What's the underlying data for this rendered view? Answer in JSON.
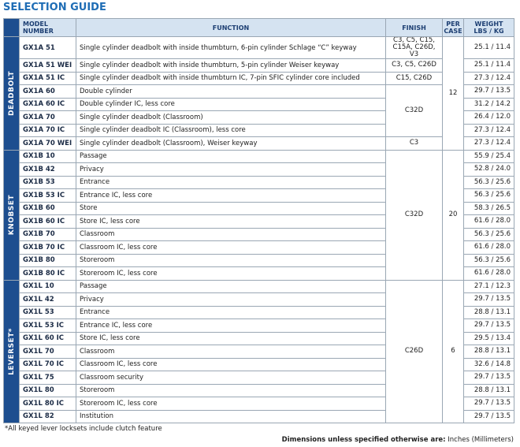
{
  "title": "SELECTION GUIDE",
  "header": {
    "model": "MODEL NUMBER",
    "function": "FUNCTION",
    "finish": "FINISH",
    "per_case": "PER CASE",
    "weight": "WEIGHT",
    "weight_unit": "LBS / KG"
  },
  "groups": [
    {
      "label": "DEADBOLT",
      "per_case": "12",
      "rows": [
        {
          "model": "GX1A 51",
          "function": "Single cylinder deadbolt with inside thumbturn, 6-pin cylinder Schlage “C” keyway",
          "finish": "C3, C5, C15, C15A, C26D, V3",
          "weight": "25.1 / 11.4"
        },
        {
          "model": "GX1A 51 WEI",
          "function": "Single cylinder deadbolt with inside thumbturn, 5-pin cylinder Weiser keyway",
          "finish": "C3, C5, C26D",
          "weight": "25.1 / 11.4"
        },
        {
          "model": "GX1A 51 IC",
          "function": "Single cylinder deadbolt with inside thumbturn IC, 7-pin SFIC cylinder core included",
          "finish": "C15, C26D",
          "weight": "27.3 / 12.4"
        },
        {
          "model": "GX1A 60",
          "function": "Double cylinder",
          "finish": "C32D",
          "weight": "29.7 / 13.5"
        },
        {
          "model": "GX1A 60 IC",
          "function": "Double cylinder IC, less core",
          "finish": null,
          "weight": "31.2 / 14.2"
        },
        {
          "model": "GX1A 70",
          "function": "Single cylinder deadbolt (Classroom)",
          "finish": null,
          "weight": "26.4 / 12.0"
        },
        {
          "model": "GX1A 70 IC",
          "function": "Single cylinder deadbolt IC (Classroom), less core",
          "finish": null,
          "weight": "27.3 / 12.4"
        },
        {
          "model": "GX1A 70 WEI",
          "function": "Single cylinder deadbolt (Classroom), Weiser keyway",
          "finish": "C3",
          "weight": "27.3 / 12.4"
        }
      ]
    },
    {
      "label": "KNOBSET",
      "per_case": "20",
      "rows": [
        {
          "model": "GX1B 10",
          "function": "Passage",
          "finish": "C32D",
          "weight": "55.9 / 25.4"
        },
        {
          "model": "GX1B 42",
          "function": "Privacy",
          "finish": null,
          "weight": "52.8 / 24.0"
        },
        {
          "model": "GX1B 53",
          "function": "Entrance",
          "finish": null,
          "weight": "56.3 / 25.6"
        },
        {
          "model": "GX1B 53 IC",
          "function": "Entrance IC, less core",
          "finish": null,
          "weight": "56.3 / 25.6"
        },
        {
          "model": "GX1B 60",
          "function": "Store",
          "finish": null,
          "weight": "58.3 / 26.5"
        },
        {
          "model": "GX1B 60 IC",
          "function": "Store IC, less core",
          "finish": null,
          "weight": "61.6 / 28.0"
        },
        {
          "model": "GX1B 70",
          "function": "Classroom",
          "finish": null,
          "weight": "56.3 / 25.6"
        },
        {
          "model": "GX1B 70 IC",
          "function": "Classroom IC, less core",
          "finish": null,
          "weight": "61.6 / 28.0"
        },
        {
          "model": "GX1B 80",
          "function": "Storeroom",
          "finish": null,
          "weight": "56.3 / 25.6"
        },
        {
          "model": "GX1B 80 IC",
          "function": "Storeroom IC, less core",
          "finish": null,
          "weight": "61.6 / 28.0"
        }
      ]
    },
    {
      "label": "LEVERSET*",
      "per_case": "6",
      "rows": [
        {
          "model": "GX1L 10",
          "function": "Passage",
          "finish": "C26D",
          "weight": "27.1 / 12.3"
        },
        {
          "model": "GX1L 42",
          "function": "Privacy",
          "finish": null,
          "weight": "29.7 / 13.5"
        },
        {
          "model": "GX1L 53",
          "function": "Entrance",
          "finish": null,
          "weight": "28.8 / 13.1"
        },
        {
          "model": "GX1L 53 IC",
          "function": "Entrance IC, less core",
          "finish": null,
          "weight": "29.7 / 13.5"
        },
        {
          "model": "GX1L 60 IC",
          "function": "Store IC, less core",
          "finish": null,
          "weight": "29.5 / 13.4"
        },
        {
          "model": "GX1L 70",
          "function": "Classroom",
          "finish": null,
          "weight": "28.8 / 13.1"
        },
        {
          "model": "GX1L 70 IC",
          "function": "Classroom IC, less core",
          "finish": null,
          "weight": "32.6 / 14.8"
        },
        {
          "model": "GX1L 75",
          "function": "Classroom security",
          "finish": null,
          "weight": "29.7 / 13.5"
        },
        {
          "model": "GX1L 80",
          "function": "Storeroom",
          "finish": null,
          "weight": "28.8 / 13.1"
        },
        {
          "model": "GX1L 80 IC",
          "function": "Storeroom IC, less core",
          "finish": null,
          "weight": "29.7 / 13.5"
        },
        {
          "model": "GX1L 82",
          "function": "Institution",
          "finish": null,
          "weight": "29.7 / 13.5"
        }
      ]
    }
  ],
  "footnote": "*All keyed lever locksets include clutch feature",
  "dimensions": {
    "label": "Dimensions unless specified otherwise are:",
    "value": "Inches (Millimeters)"
  }
}
